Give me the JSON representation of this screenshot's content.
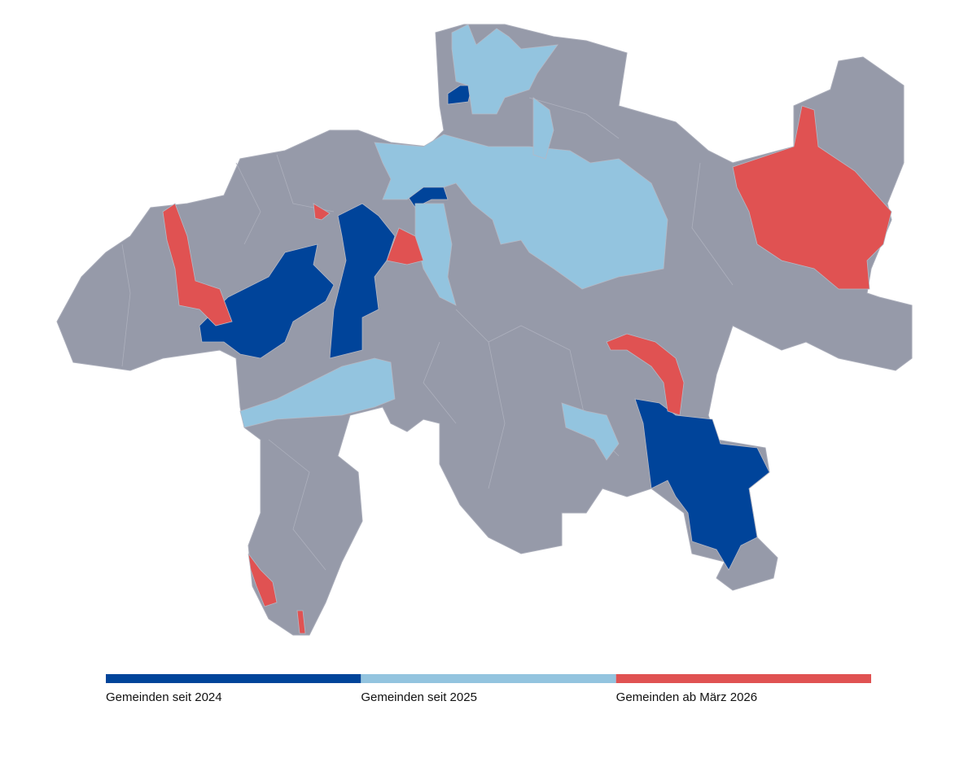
{
  "legend": {
    "items": [
      {
        "label": "Gemeinden seit 2024",
        "color": "#00449a"
      },
      {
        "label": "Gemeinden seit 2025",
        "color": "#93c4df"
      },
      {
        "label": "Gemeinden ab März 2026",
        "color": "#e05252"
      }
    ]
  }
}
